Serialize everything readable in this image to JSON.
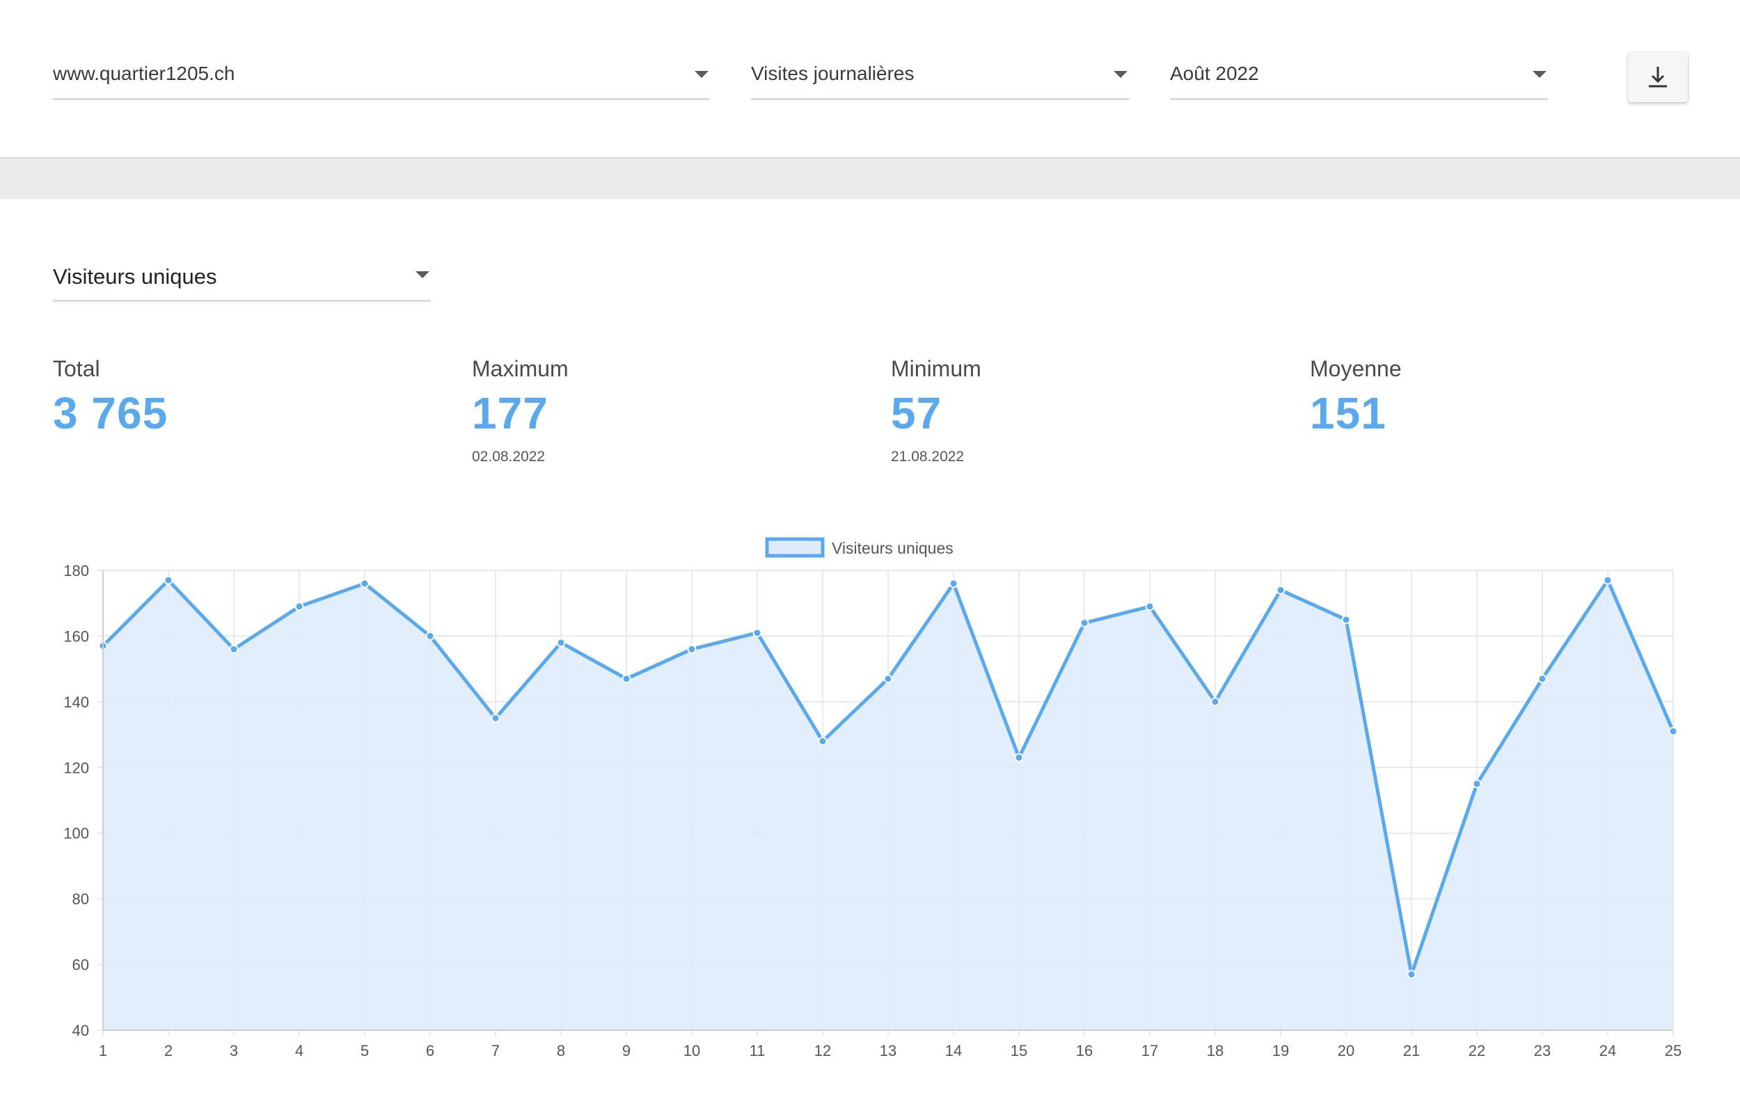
{
  "filters": {
    "site": "www.quartier1205.ch",
    "period": "Visites journalières",
    "month": "Août 2022"
  },
  "toolbar": {
    "download_icon": "download-icon"
  },
  "metric_select": {
    "value": "Visiteurs uniques"
  },
  "stats": {
    "total": {
      "label": "Total",
      "value": "3 765"
    },
    "maximum": {
      "label": "Maximum",
      "value": "177",
      "date": "02.08.2022"
    },
    "minimum": {
      "label": "Minimum",
      "value": "57",
      "date": "21.08.2022"
    },
    "average": {
      "label": "Moyenne",
      "value": "151"
    }
  },
  "colors": {
    "accent": "#5aa9ec",
    "fill": "#ddebfb",
    "grid": "#e3e3e3"
  },
  "chart_data": {
    "type": "area",
    "title": "",
    "xlabel": "",
    "ylabel": "",
    "legend_position": "top-center",
    "grid": true,
    "ylim": [
      40,
      180
    ],
    "yticks": [
      40,
      60,
      80,
      100,
      120,
      140,
      160,
      180
    ],
    "x": [
      1,
      2,
      3,
      4,
      5,
      6,
      7,
      8,
      9,
      10,
      11,
      12,
      13,
      14,
      15,
      16,
      17,
      18,
      19,
      20,
      21,
      22,
      23,
      24,
      25
    ],
    "series": [
      {
        "name": "Visiteurs uniques",
        "values": [
          157,
          177,
          156,
          169,
          176,
          160,
          135,
          158,
          147,
          156,
          161,
          128,
          147,
          176,
          123,
          164,
          169,
          140,
          174,
          165,
          57,
          115,
          147,
          177,
          131
        ]
      }
    ]
  }
}
